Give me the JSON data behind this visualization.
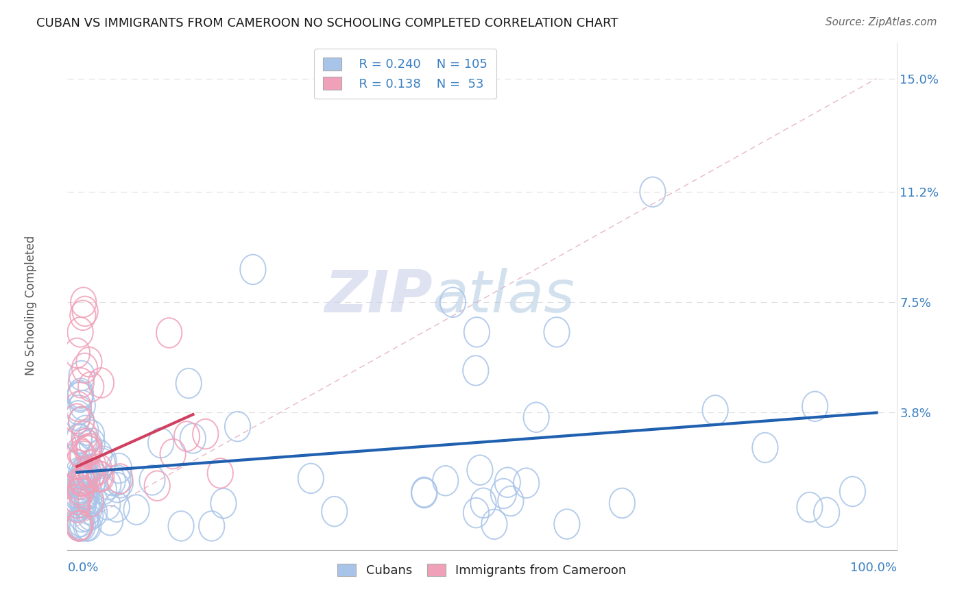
{
  "title": "CUBAN VS IMMIGRANTS FROM CAMEROON NO SCHOOLING COMPLETED CORRELATION CHART",
  "source": "Source: ZipAtlas.com",
  "ylabel": "No Schooling Completed",
  "ytick_vals": [
    0.0,
    0.038,
    0.075,
    0.112,
    0.15
  ],
  "ytick_labels": [
    "",
    "3.8%",
    "7.5%",
    "11.2%",
    "15.0%"
  ],
  "blue_color": "#a8c4e8",
  "pink_color": "#f0a0b8",
  "blue_line_color": "#2060b0",
  "pink_line_color": "#d04060",
  "diag_line_color": "#e8b8c8",
  "legend_r1": "R = 0.240",
  "legend_n1": "N = 105",
  "legend_r2": "R = 0.138",
  "legend_n2": "N =  53",
  "watermark_zip": "ZIP",
  "watermark_atlas": "atlas",
  "blue_label": "Cubans",
  "pink_label": "Immigrants from Cameroon"
}
